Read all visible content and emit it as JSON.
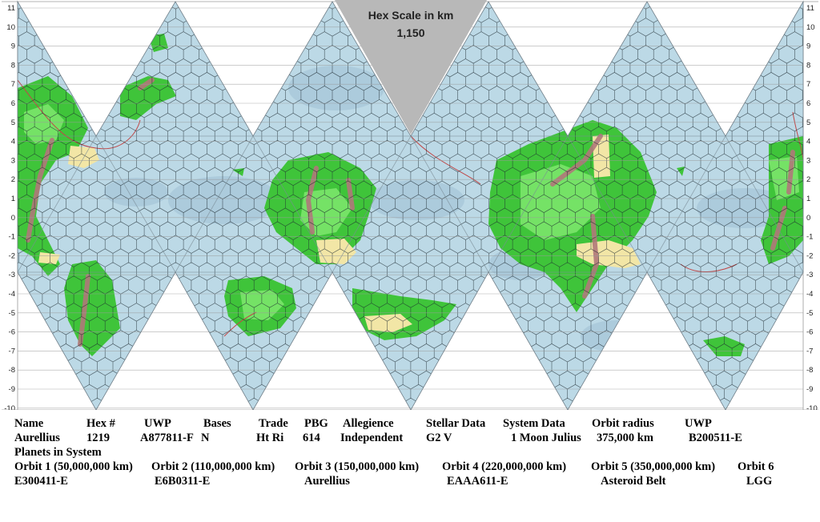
{
  "map": {
    "scale_title": "Hex Scale in km",
    "scale_value": "1,150",
    "y_axis_labels": [
      "11",
      "10",
      "9",
      "8",
      "7",
      "6",
      "5",
      "4",
      "3",
      "2",
      "1",
      "0",
      "-1",
      "-2",
      "-3",
      "-4",
      "-5",
      "-6",
      "-7",
      "-8",
      "-9",
      "-10"
    ],
    "colors": {
      "ocean": "#bcd9e6",
      "deep_ocean": "#9fbfd3",
      "land": "#3fc43a",
      "light_land": "#7fe86e",
      "mountain": "#b0787a",
      "desert": "#f2e6a6",
      "scale_box": "#b8b8b8",
      "grid": "#1e2a30"
    }
  },
  "system": {
    "headers": {
      "name": "Name",
      "hex": "Hex #",
      "uwp": "UWP",
      "bases": "Bases",
      "trade": "Trade",
      "pbg": "PBG",
      "allegiance": "Allegience",
      "stellar": "Stellar Data",
      "system": "System Data",
      "orbit_radius": "Orbit radius",
      "uwp2": "UWP"
    },
    "values": {
      "name": "Aurellius",
      "hex": "1219",
      "uwp": "A877811-F",
      "bases": "N",
      "trade": "Ht Ri",
      "pbg": "614",
      "allegiance": "Independent",
      "stellar": "G2 V",
      "system": "1 Moon Julius",
      "orbit_radius": "375,000 km",
      "uwp2": "B200511-E"
    },
    "planets_label": "Planets in System",
    "orbits": [
      {
        "label": "Orbit 1 (50,000,000 km)",
        "value": "E300411-E"
      },
      {
        "label": "Orbit 2 (110,000,000 km)",
        "value": "E6B0311-E"
      },
      {
        "label": "Orbit 3 (150,000,000 km)",
        "value": "Aurellius"
      },
      {
        "label": "Orbit 4 (220,000,000 km)",
        "value": "EAAA611-E"
      },
      {
        "label": "Orbit 5 (350,000,000 km)",
        "value": "Asteroid Belt"
      },
      {
        "label": "Orbit 6",
        "value": "LGG"
      }
    ]
  }
}
